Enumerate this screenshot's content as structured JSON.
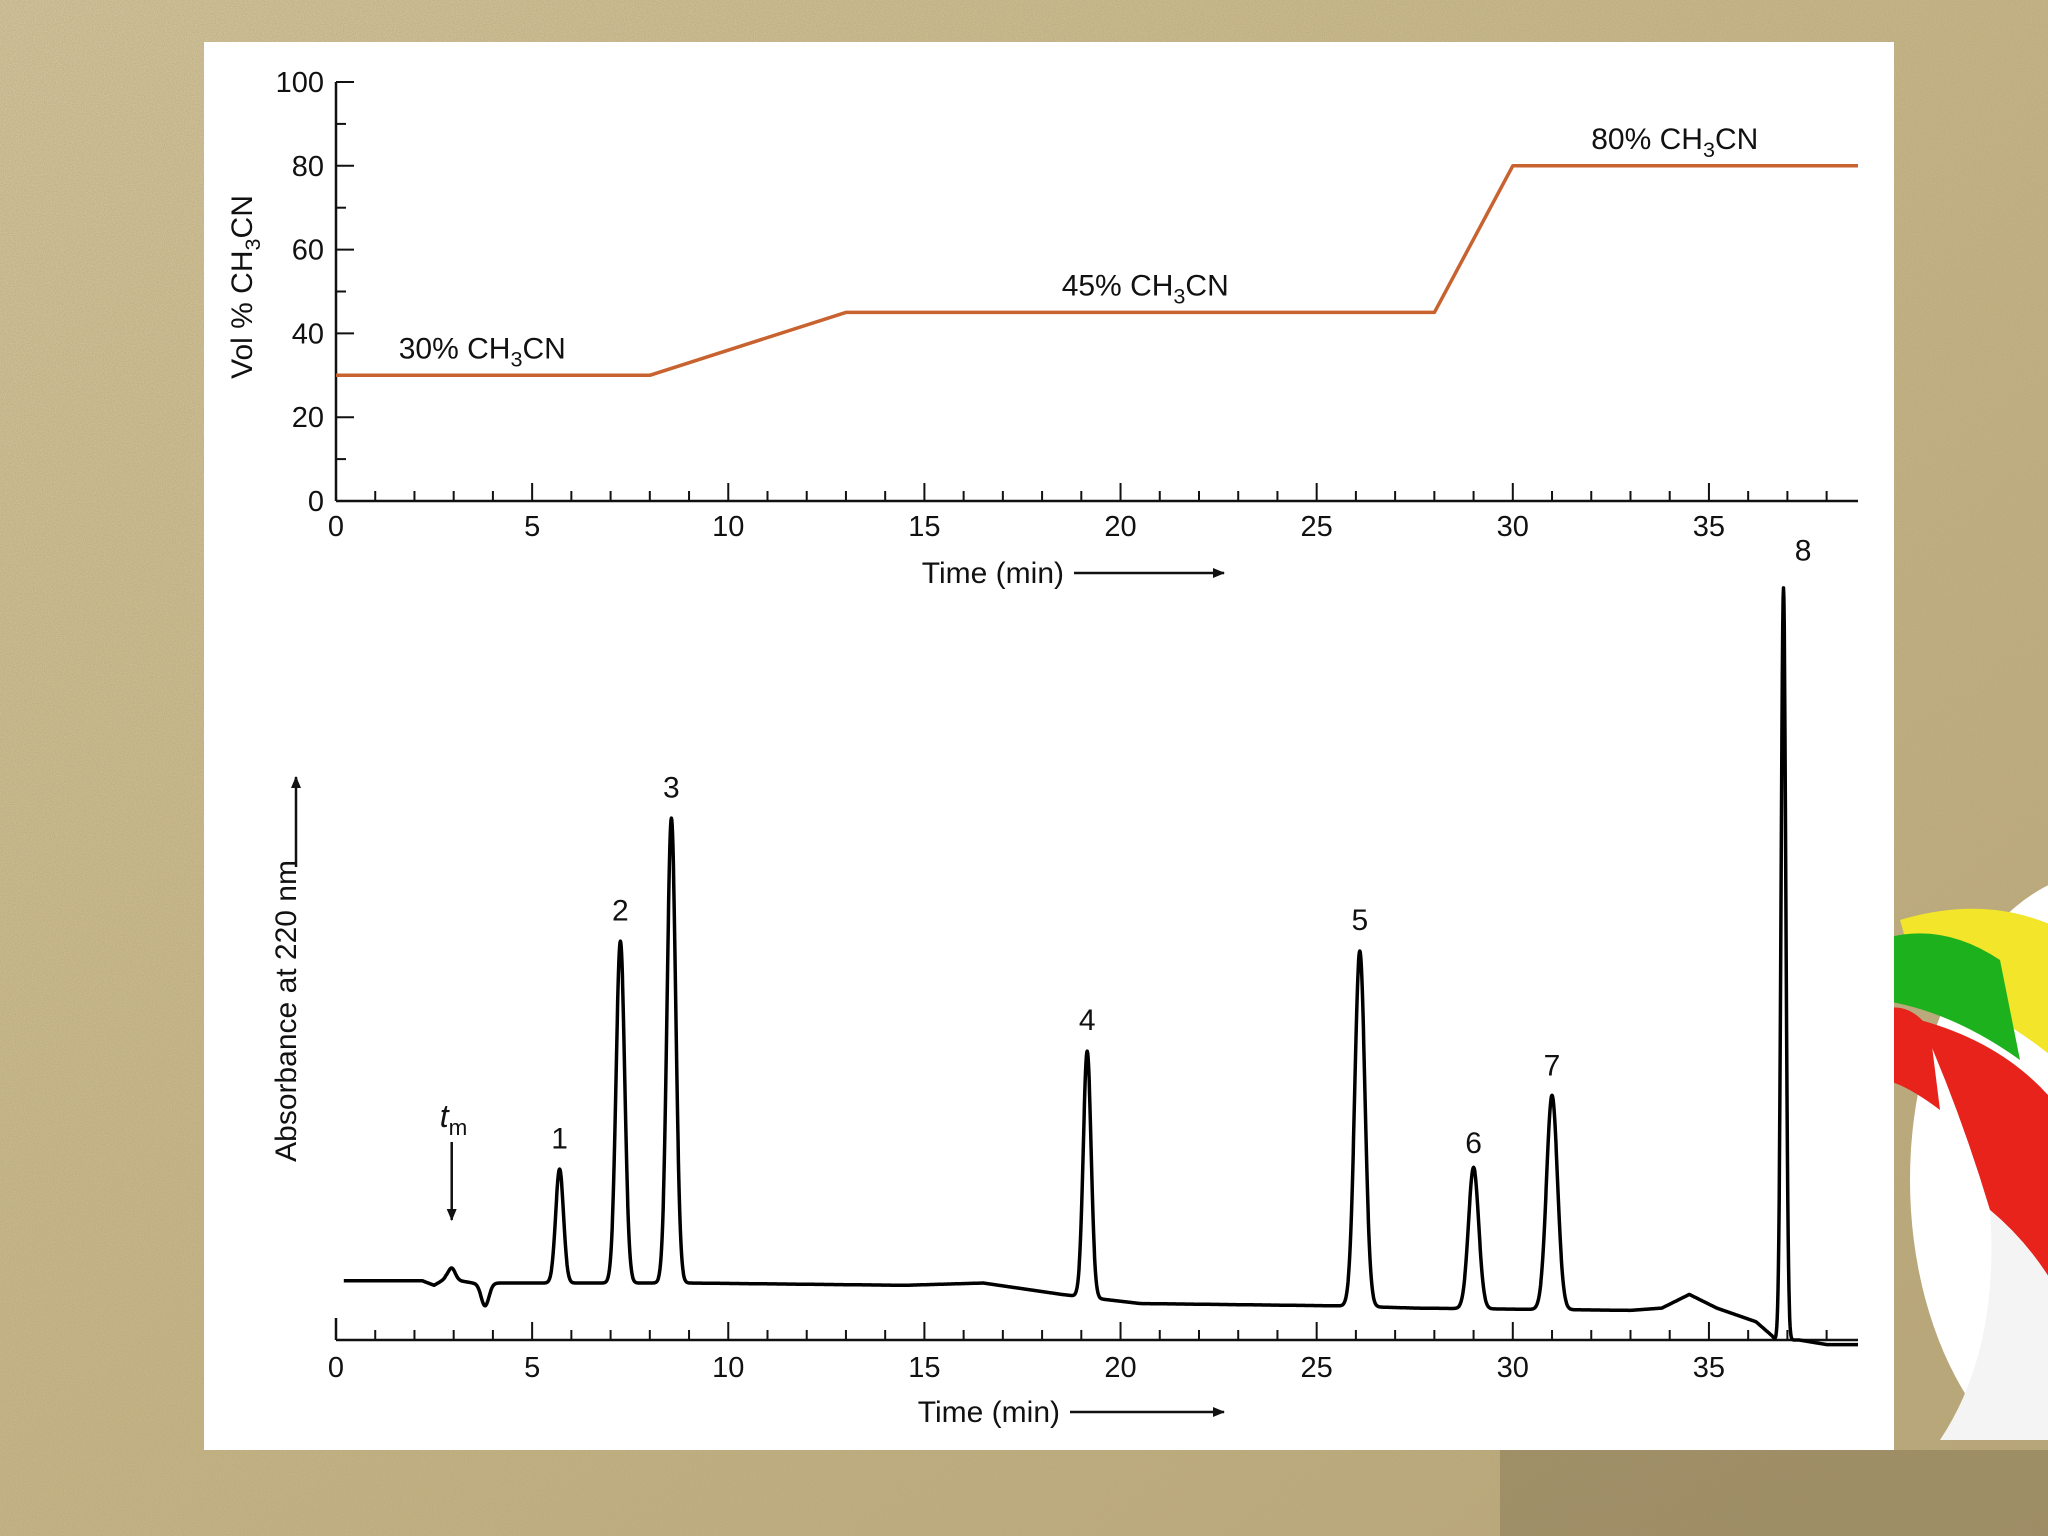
{
  "background": {
    "sand_color": "#c9b88a",
    "beach_ball_colors": [
      "#e8231c",
      "#ffffff",
      "#1db21d",
      "#f2e52a"
    ]
  },
  "chart_data": [
    {
      "type": "line",
      "name": "gradient-program",
      "color": "#c8622e",
      "xlabel": "Time (min)",
      "ylabel": "Vol % CH₃CN",
      "xlim": [
        0,
        38.8
      ],
      "ylim": [
        0,
        100
      ],
      "xticks": [
        0,
        5,
        10,
        15,
        20,
        25,
        30,
        35
      ],
      "yticks": [
        0,
        20,
        40,
        60,
        80,
        100
      ],
      "series": [
        {
          "x": [
            0,
            8,
            13,
            28,
            30,
            38.8
          ],
          "y": [
            30,
            30,
            45,
            45,
            80,
            80
          ]
        }
      ],
      "annotations": [
        {
          "text": "30% CH₃CN",
          "x": 1.6,
          "y": 34
        },
        {
          "text": "45% CH₃CN",
          "x": 18.5,
          "y": 49
        },
        {
          "text": "80% CH₃CN",
          "x": 32,
          "y": 84
        }
      ]
    },
    {
      "type": "line",
      "name": "chromatogram",
      "color": "#000000",
      "xlabel": "Time (min)",
      "ylabel": "Absorbance at 220 nm",
      "xlim": [
        0,
        38.8
      ],
      "ylim": [
        -0.13,
        1.5
      ],
      "xticks": [
        0,
        5,
        10,
        15,
        20,
        25,
        30,
        35
      ],
      "baseline": [
        [
          0.2,
          0
        ],
        [
          2.2,
          0
        ],
        [
          2.5,
          -0.01
        ],
        [
          2.8,
          0.005
        ],
        [
          3.5,
          -0.005
        ],
        [
          4.5,
          -0.005
        ],
        [
          6.5,
          -0.005
        ],
        [
          9.0,
          -0.005
        ],
        [
          14.5,
          -0.01
        ],
        [
          16.5,
          -0.005
        ],
        [
          18.5,
          -0.03
        ],
        [
          20.5,
          -0.05
        ],
        [
          25.5,
          -0.055
        ],
        [
          27.5,
          -0.06
        ],
        [
          33.0,
          -0.065
        ],
        [
          33.8,
          -0.06
        ],
        [
          34.5,
          -0.03
        ],
        [
          35.2,
          -0.06
        ],
        [
          36.2,
          -0.09
        ],
        [
          36.6,
          -0.12
        ],
        [
          36.7,
          -0.13
        ],
        [
          37.3,
          -0.13
        ],
        [
          38.0,
          -0.14
        ],
        [
          38.5,
          -0.14
        ],
        [
          38.8,
          -0.14
        ]
      ],
      "features": [
        {
          "label": "t_m",
          "x": 2.95,
          "h": 0.025,
          "w": 0.09
        },
        {
          "label": "dip",
          "x": 3.8,
          "h": -0.05,
          "w": 0.1
        },
        {
          "label": "1",
          "x": 5.7,
          "h": 0.25,
          "w": 0.1
        },
        {
          "label": "2",
          "x": 7.25,
          "h": 0.75,
          "w": 0.11
        },
        {
          "label": "3",
          "x": 8.55,
          "h": 1.02,
          "w": 0.11
        },
        {
          "label": "4",
          "x": 19.15,
          "h": 0.54,
          "w": 0.1
        },
        {
          "label": "5",
          "x": 26.1,
          "h": 0.78,
          "w": 0.13
        },
        {
          "label": "6",
          "x": 29.0,
          "h": 0.31,
          "w": 0.13
        },
        {
          "label": "7",
          "x": 31.0,
          "h": 0.47,
          "w": 0.14
        },
        {
          "label": "8",
          "x": 36.9,
          "h": 1.65,
          "w": 0.06
        }
      ],
      "peak_labels": [
        {
          "text": "1",
          "x": 5.7,
          "y": 0.29
        },
        {
          "text": "2",
          "x": 7.25,
          "y": 0.79
        },
        {
          "text": "3",
          "x": 8.55,
          "y": 1.06
        },
        {
          "text": "4",
          "x": 19.15,
          "y": 0.55
        },
        {
          "text": "5",
          "x": 26.1,
          "y": 0.77
        },
        {
          "text": "6",
          "x": 29.0,
          "y": 0.28
        },
        {
          "text": "7",
          "x": 31.0,
          "y": 0.45
        },
        {
          "text": "8",
          "x": 37.4,
          "y": 1.58
        }
      ],
      "dead_time_marker": {
        "text": "t",
        "subscript": "m",
        "x": 2.95
      }
    }
  ]
}
